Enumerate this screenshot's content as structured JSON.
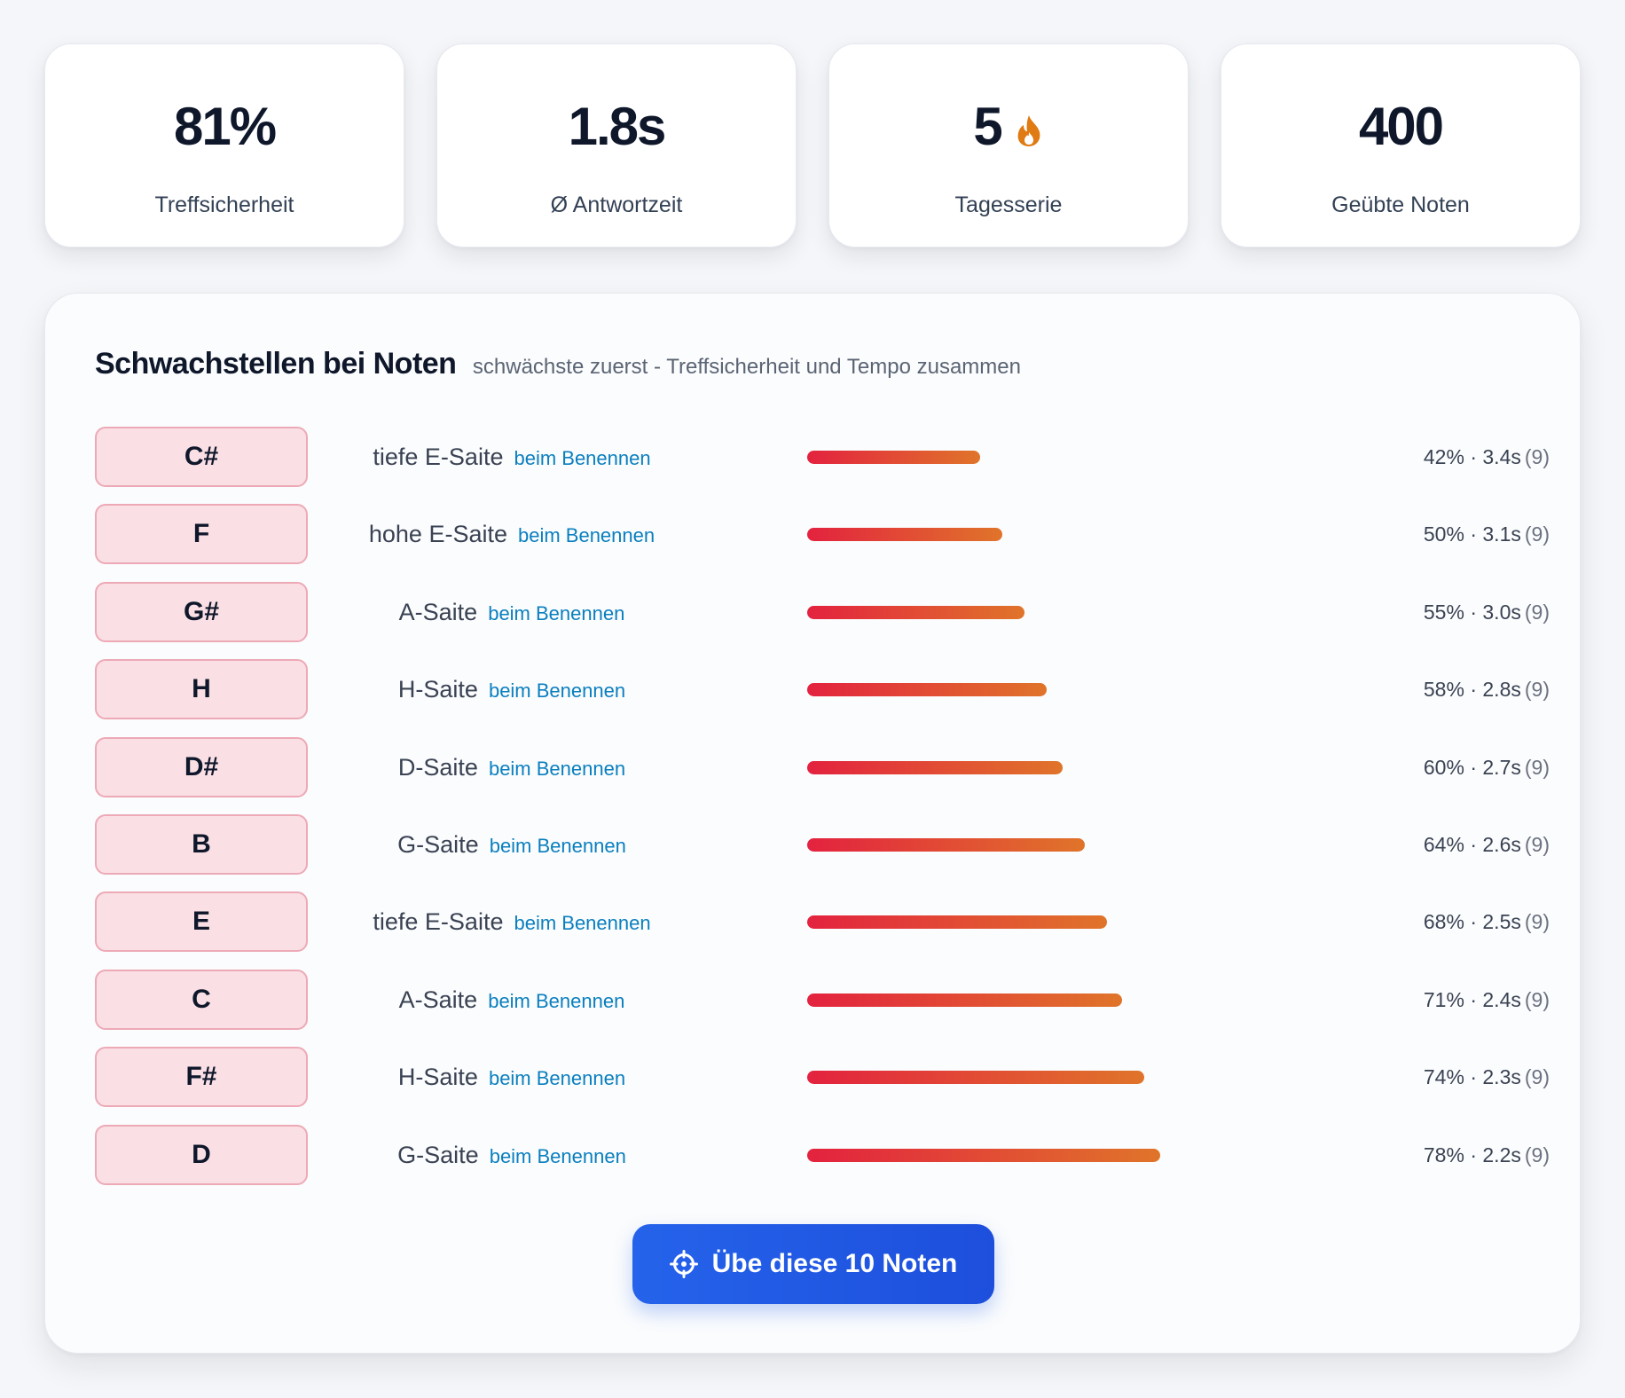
{
  "stats": [
    {
      "value": "81%",
      "label": "Treffsicherheit"
    },
    {
      "value": "1.8s",
      "label": "Ø Antwortzeit"
    },
    {
      "value": "5",
      "label": "Tagesserie",
      "icon": "flame-icon"
    },
    {
      "value": "400",
      "label": "Geübte Noten"
    }
  ],
  "weak_notes": {
    "title": "Schwachstellen bei Noten",
    "subtitle": "schwächste zuerst - Treffsicherheit und Tempo zusammen",
    "rows": [
      {
        "note": "C#",
        "string": "tiefe E-Saite",
        "mode": "beim Benennen",
        "score": "42%",
        "time": "3.4s",
        "count": "(9)",
        "bar_level": 0.39
      },
      {
        "note": "F",
        "string": "hohe E-Saite",
        "mode": "beim Benennen",
        "score": "50%",
        "time": "3.1s",
        "count": "(9)",
        "bar_level": 0.44
      },
      {
        "note": "G#",
        "string": "A-Saite",
        "mode": "beim Benennen",
        "score": "55%",
        "time": "3.0s",
        "count": "(9)",
        "bar_level": 0.49
      },
      {
        "note": "H",
        "string": "H-Saite",
        "mode": "beim Benennen",
        "score": "58%",
        "time": "2.8s",
        "count": "(9)",
        "bar_level": 0.54
      },
      {
        "note": "D#",
        "string": "D-Saite",
        "mode": "beim Benennen",
        "score": "60%",
        "time": "2.7s",
        "count": "(9)",
        "bar_level": 0.575
      },
      {
        "note": "B",
        "string": "G-Saite",
        "mode": "beim Benennen",
        "score": "64%",
        "time": "2.6s",
        "count": "(9)",
        "bar_level": 0.625
      },
      {
        "note": "E",
        "string": "tiefe E-Saite",
        "mode": "beim Benennen",
        "score": "68%",
        "time": "2.5s",
        "count": "(9)",
        "bar_level": 0.675
      },
      {
        "note": "C",
        "string": "A-Saite",
        "mode": "beim Benennen",
        "score": "71%",
        "time": "2.4s",
        "count": "(9)",
        "bar_level": 0.71
      },
      {
        "note": "F#",
        "string": "H-Saite",
        "mode": "beim Benennen",
        "score": "74%",
        "time": "2.3s",
        "count": "(9)",
        "bar_level": 0.76
      },
      {
        "note": "D",
        "string": "G-Saite",
        "mode": "beim Benennen",
        "score": "78%",
        "time": "2.2s",
        "count": "(9)",
        "bar_level": 0.795
      }
    ]
  },
  "cta": {
    "label": "Übe diese 10 Noten",
    "icon": "crosshair-icon"
  },
  "colors": {
    "bar_start": "#e3223f",
    "bar_end": "#e0742a",
    "accent_blue": "#2563eb",
    "mode_text": "#0a7fbf",
    "flame": "#e07a12",
    "badge_bg": "#fae0e5",
    "badge_border": "#eda9b6"
  }
}
